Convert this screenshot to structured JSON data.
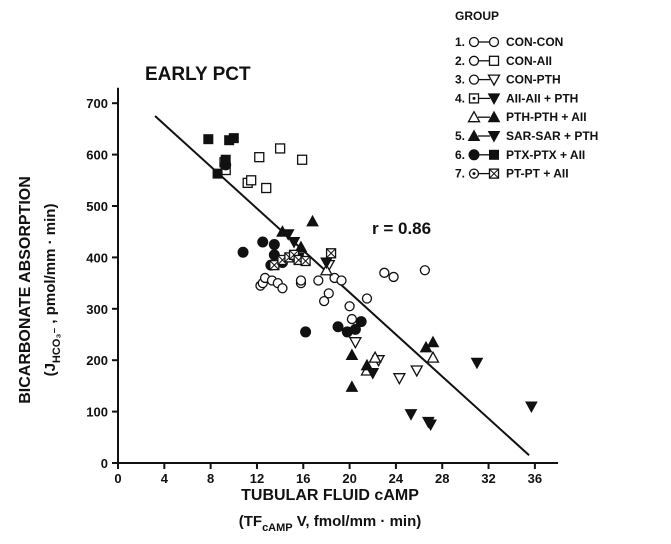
{
  "chart_data": {
    "type": "scatter",
    "title": "EARLY PCT",
    "y_label": {
      "line1": "BICARBONATE ABSORPTION",
      "pre": "(J",
      "sub": "HCO₃⁻",
      "post": " , pmol/mm · min)"
    },
    "x_label": {
      "line1": "TUBULAR FLUID cAMP",
      "pre": "(TF",
      "sub": "cAMP",
      "post": " V, fmol/mm · min)"
    },
    "annotation": "r = 0.86",
    "xlim": [
      0,
      38
    ],
    "ylim": [
      0,
      730
    ],
    "xticks": [
      0,
      4,
      8,
      12,
      16,
      20,
      24,
      28,
      32,
      36
    ],
    "yticks": [
      0,
      100,
      200,
      300,
      400,
      500,
      600,
      700
    ],
    "fit": {
      "x": [
        3.2,
        35.5
      ],
      "y": [
        675,
        15
      ]
    },
    "series": [
      {
        "marker": "open-circle",
        "x": [
          12.3,
          12.5,
          12.7,
          13.3,
          13.8,
          14.2,
          15.8,
          15.8,
          17.3,
          17.8,
          18.2,
          18.7,
          19.3,
          20,
          20.2,
          21.5,
          23,
          23.8,
          26.5
        ],
        "y": [
          345,
          350,
          360,
          355,
          350,
          340,
          350,
          355,
          355,
          315,
          330,
          360,
          355,
          305,
          280,
          320,
          370,
          362,
          375
        ]
      },
      {
        "marker": "open-square",
        "x": [
          9.2,
          9.3,
          11.2,
          11.5,
          12.2,
          12.8,
          14,
          15.9
        ],
        "y": [
          585,
          570,
          545,
          550,
          595,
          535,
          612,
          590
        ]
      },
      {
        "marker": "open-triangle-down",
        "x": [
          18.2,
          20.5,
          22.5,
          24.3,
          25.8
        ],
        "y": [
          385,
          235,
          200,
          165,
          180
        ]
      },
      {
        "marker": "open-triangle-up",
        "x": [
          18,
          21.5,
          22.2,
          27.2
        ],
        "y": [
          375,
          180,
          205,
          205
        ]
      },
      {
        "marker": "filled-triangle-up",
        "x": [
          14.2,
          15.8,
          16.8,
          20.2,
          20.2,
          21.5,
          26.6,
          27.2
        ],
        "y": [
          450,
          420,
          470,
          210,
          148,
          190,
          225,
          235
        ]
      },
      {
        "marker": "filled-triangle-down",
        "x": [
          14.7,
          15.2,
          15.6,
          18,
          22,
          25.3,
          26.8,
          27,
          31,
          35.7
        ],
        "y": [
          445,
          430,
          400,
          390,
          175,
          95,
          80,
          75,
          195,
          110
        ]
      },
      {
        "marker": "filled-circle",
        "x": [
          9.3,
          10.8,
          12.5,
          13.2,
          13.5,
          13.5,
          14.2,
          16.2,
          19,
          19.8,
          20.5,
          21
        ],
        "y": [
          580,
          410,
          430,
          385,
          405,
          425,
          390,
          255,
          265,
          255,
          260,
          275
        ]
      },
      {
        "marker": "filled-square",
        "x": [
          7.8,
          8.6,
          9.3,
          9.6,
          10
        ],
        "y": [
          630,
          563,
          590,
          628,
          632
        ]
      },
      {
        "marker": "boxed-x",
        "x": [
          13.5,
          14.2,
          14.8,
          15.2,
          15.6,
          16.2,
          18.4
        ],
        "y": [
          385,
          395,
          400,
          405,
          395,
          393,
          408
        ]
      }
    ],
    "legend": {
      "title": "GROUP",
      "entries": [
        {
          "number": "1.",
          "name": "CON-CON",
          "markers": [
            "open-circle",
            "open-circle"
          ]
        },
        {
          "number": "2.",
          "name": "CON-AII",
          "markers": [
            "open-circle",
            "open-square"
          ]
        },
        {
          "number": "3.",
          "name": "CON-PTH",
          "markers": [
            "open-circle",
            "open-triangle-down"
          ]
        },
        {
          "number": "4.",
          "name": "AII-AII + PTH",
          "markers": [
            "boxed-dot",
            "filled-triangle-down"
          ]
        },
        {
          "name": "PTH-PTH + AII",
          "markers": [
            "open-triangle-up",
            "filled-triangle-up"
          ]
        },
        {
          "number": "5.",
          "name": "SAR-SAR + PTH",
          "markers": [
            "filled-triangle-up",
            "filled-triangle-down"
          ]
        },
        {
          "number": "6.",
          "name": "PTX-PTX + AII",
          "markers": [
            "filled-circle",
            "filled-square"
          ]
        },
        {
          "number": "7.",
          "name": "PT-PT + AII",
          "markers": [
            "dot-circle",
            "boxed-x"
          ]
        }
      ]
    }
  }
}
